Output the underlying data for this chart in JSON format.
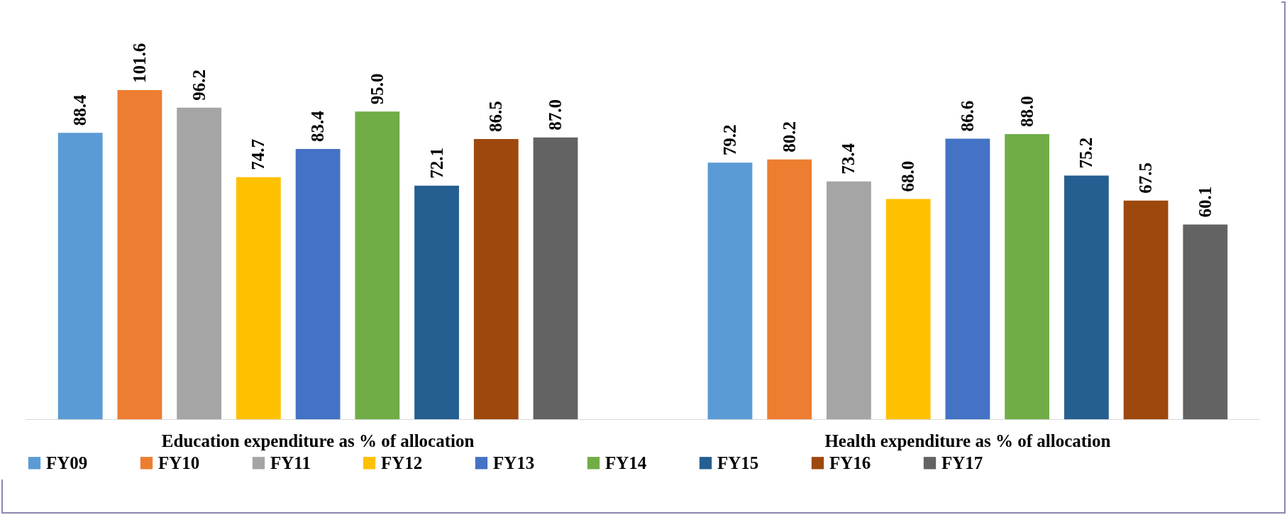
{
  "chart_data": {
    "type": "bar",
    "categories": [
      "Education expenditure as % of allocation",
      "Health expenditure as % of allocation"
    ],
    "series": [
      {
        "name": "FY09",
        "color": "#5b9bd5",
        "values": [
          88.4,
          79.2
        ],
        "value_labels": [
          "88.4",
          "79.2"
        ]
      },
      {
        "name": "FY10",
        "color": "#ed7d31",
        "values": [
          101.6,
          80.2
        ],
        "value_labels": [
          "101.6",
          "80.2"
        ]
      },
      {
        "name": "FY11",
        "color": "#a5a5a5",
        "values": [
          96.2,
          73.4
        ],
        "value_labels": [
          "96.2",
          "73.4"
        ]
      },
      {
        "name": "FY12",
        "color": "#ffc000",
        "values": [
          74.7,
          68.0
        ],
        "value_labels": [
          "74.7",
          "68.0"
        ]
      },
      {
        "name": "FY13",
        "color": "#4472c4",
        "values": [
          83.4,
          86.6
        ],
        "value_labels": [
          "83.4",
          "86.6"
        ]
      },
      {
        "name": "FY14",
        "color": "#70ad47",
        "values": [
          95.0,
          88.0
        ],
        "value_labels": [
          "95.0",
          "88.0"
        ]
      },
      {
        "name": "FY15",
        "color": "#255e91",
        "values": [
          72.1,
          75.2
        ],
        "value_labels": [
          "72.1",
          "75.2"
        ]
      },
      {
        "name": "FY16",
        "color": "#9e480e",
        "values": [
          86.5,
          67.5
        ],
        "value_labels": [
          "86.5",
          "67.5"
        ]
      },
      {
        "name": "FY17",
        "color": "#636363",
        "values": [
          87.0,
          60.1
        ],
        "value_labels": [
          "87.0",
          "60.1"
        ]
      }
    ],
    "legend": "bottom",
    "grid": false
  }
}
